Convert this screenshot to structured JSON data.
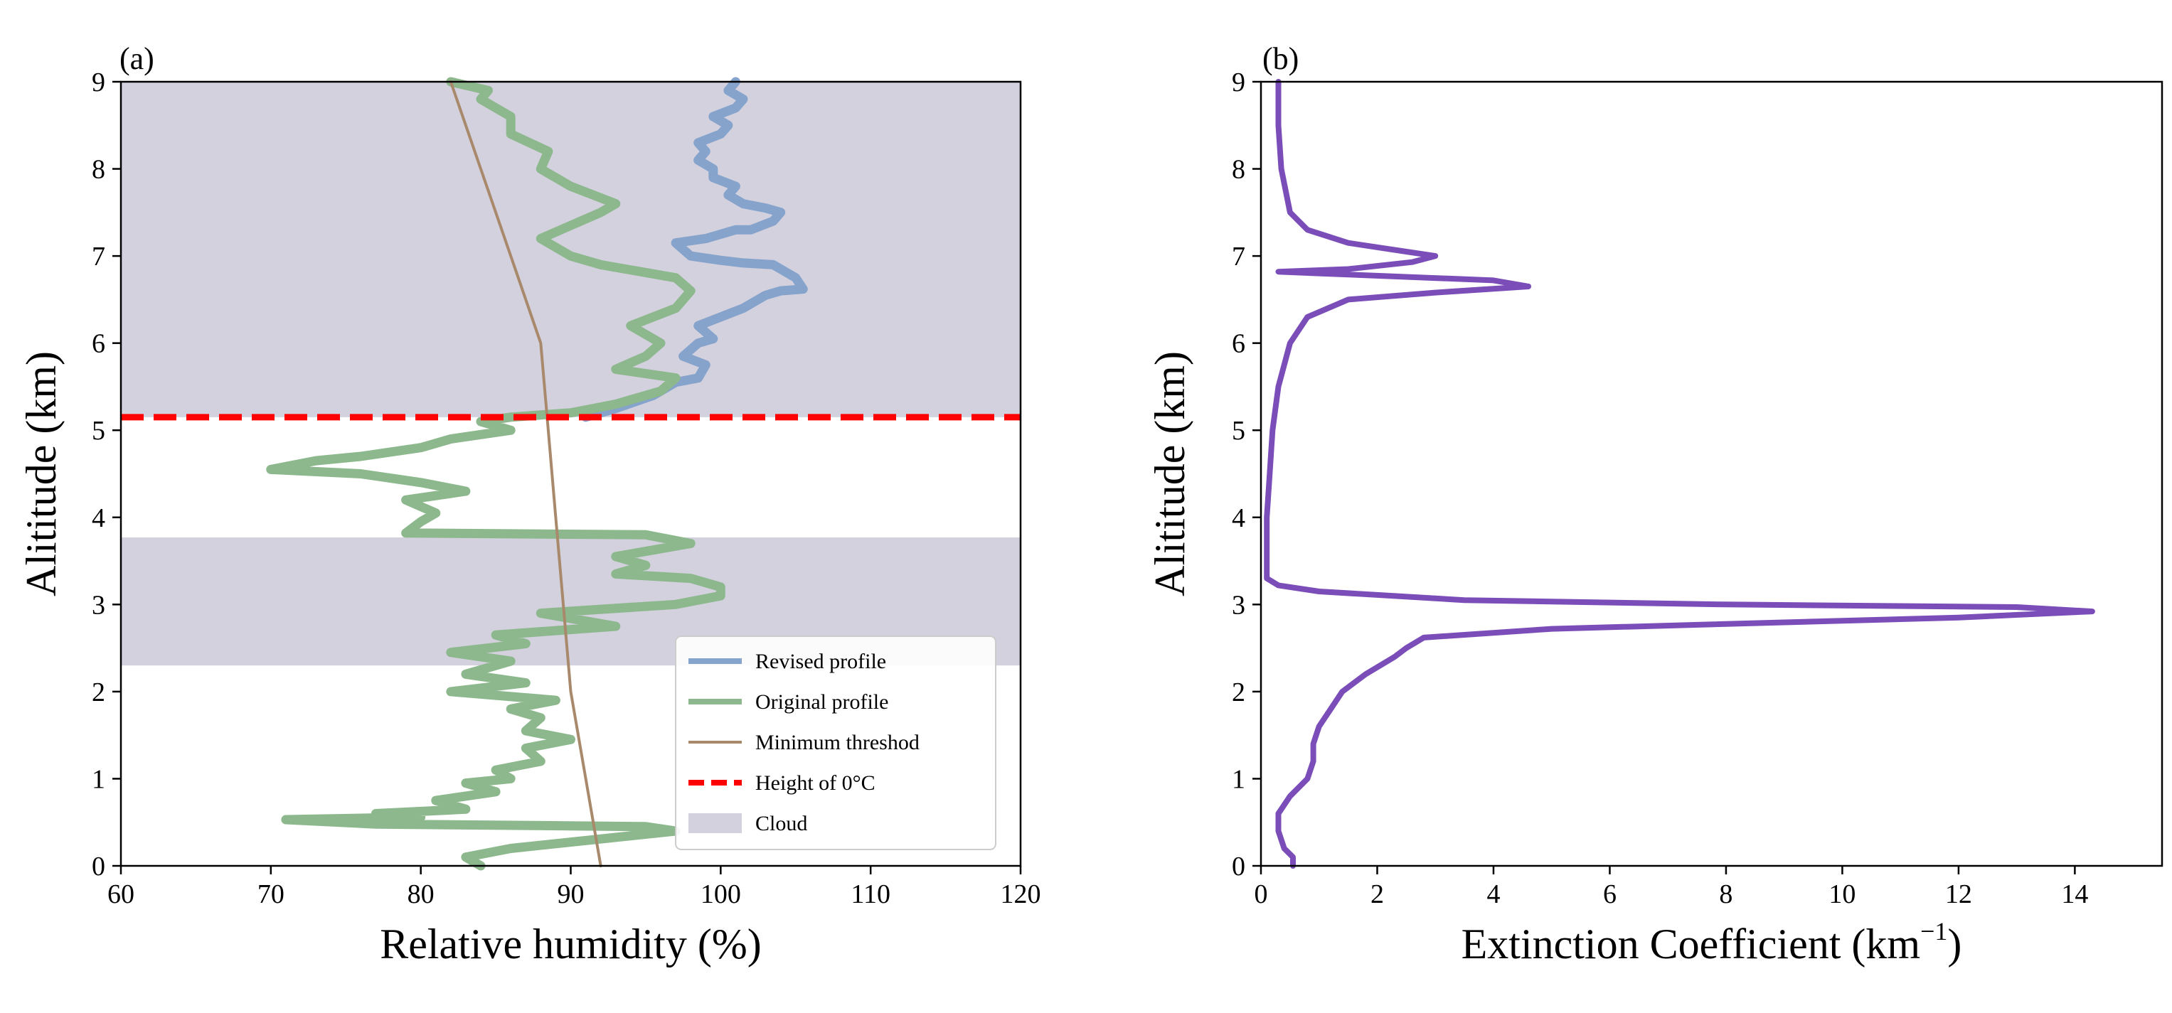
{
  "chart_data": [
    {
      "type": "line",
      "panel_label": "(a)",
      "xlabel": "Relative humidity (%)",
      "ylabel": "Alititude (km)",
      "xlim": [
        60,
        120
      ],
      "ylim": [
        0,
        9
      ],
      "xticks": [
        60,
        70,
        80,
        90,
        100,
        110,
        120
      ],
      "yticks": [
        0,
        1,
        2,
        3,
        4,
        5,
        6,
        7,
        8,
        9
      ],
      "cloud_bands": [
        [
          2.3,
          3.77
        ],
        [
          5.15,
          9.0
        ]
      ],
      "freezing_level": 5.15,
      "legend": {
        "position": "lower-right",
        "entries": [
          "Revised profile",
          "Original profile",
          "Minimum threshod",
          "Height of 0°C",
          "Cloud"
        ]
      },
      "colors": {
        "revised": "#86a3cc",
        "original": "#8db88d",
        "threshold": "#a9896b",
        "zero_deg": "#ff0000",
        "cloud": "#d3d1de"
      },
      "series": [
        {
          "name": "Revised profile",
          "points": [
            [
              91,
              5.15
            ],
            [
              93,
              5.25
            ],
            [
              95.5,
              5.4
            ],
            [
              97,
              5.55
            ],
            [
              98.5,
              5.6
            ],
            [
              99,
              5.75
            ],
            [
              97.5,
              5.85
            ],
            [
              98.5,
              6.0
            ],
            [
              99.5,
              6.05
            ],
            [
              98.5,
              6.2
            ],
            [
              100,
              6.3
            ],
            [
              101.5,
              6.4
            ],
            [
              102.5,
              6.5
            ],
            [
              103,
              6.55
            ],
            [
              104,
              6.6
            ],
            [
              105.5,
              6.62
            ],
            [
              105,
              6.75
            ],
            [
              103.5,
              6.9
            ],
            [
              101.5,
              6.92
            ],
            [
              100,
              6.95
            ],
            [
              98,
              7.0
            ],
            [
              97,
              7.15
            ],
            [
              99,
              7.2
            ],
            [
              101,
              7.3
            ],
            [
              102,
              7.3
            ],
            [
              103.5,
              7.4
            ],
            [
              104,
              7.5
            ],
            [
              103,
              7.55
            ],
            [
              101.5,
              7.6
            ],
            [
              100.5,
              7.7
            ],
            [
              101,
              7.8
            ],
            [
              99.5,
              7.9
            ],
            [
              99.5,
              8.0
            ],
            [
              98.5,
              8.1
            ],
            [
              99,
              8.2
            ],
            [
              98.5,
              8.3
            ],
            [
              100,
              8.4
            ],
            [
              100.5,
              8.5
            ],
            [
              99.5,
              8.6
            ],
            [
              101,
              8.7
            ],
            [
              101.5,
              8.8
            ],
            [
              100.5,
              8.9
            ],
            [
              101,
              9.0
            ]
          ]
        },
        {
          "name": "Original profile",
          "points": [
            [
              84,
              0.0
            ],
            [
              83,
              0.1
            ],
            [
              86,
              0.2
            ],
            [
              97,
              0.4
            ],
            [
              95,
              0.45
            ],
            [
              77,
              0.48
            ],
            [
              71,
              0.53
            ],
            [
              80,
              0.56
            ],
            [
              77,
              0.6
            ],
            [
              83,
              0.65
            ],
            [
              81,
              0.75
            ],
            [
              85,
              0.85
            ],
            [
              83,
              0.95
            ],
            [
              86,
              1.0
            ],
            [
              85,
              1.1
            ],
            [
              88,
              1.2
            ],
            [
              87,
              1.35
            ],
            [
              90,
              1.45
            ],
            [
              87,
              1.55
            ],
            [
              88,
              1.7
            ],
            [
              86,
              1.8
            ],
            [
              89,
              1.9
            ],
            [
              82,
              2.0
            ],
            [
              87,
              2.1
            ],
            [
              83,
              2.2
            ],
            [
              86,
              2.35
            ],
            [
              82,
              2.45
            ],
            [
              87,
              2.55
            ],
            [
              85,
              2.65
            ],
            [
              93,
              2.75
            ],
            [
              88,
              2.9
            ],
            [
              97,
              3.0
            ],
            [
              100,
              3.1
            ],
            [
              100,
              3.2
            ],
            [
              98,
              3.3
            ],
            [
              93,
              3.35
            ],
            [
              95,
              3.45
            ],
            [
              93,
              3.55
            ],
            [
              98,
              3.7
            ],
            [
              95,
              3.8
            ],
            [
              79,
              3.82
            ],
            [
              80,
              3.95
            ],
            [
              81,
              4.05
            ],
            [
              79,
              4.2
            ],
            [
              83,
              4.3
            ],
            [
              80,
              4.4
            ],
            [
              76,
              4.5
            ],
            [
              70,
              4.55
            ],
            [
              73,
              4.65
            ],
            [
              76,
              4.7
            ],
            [
              80,
              4.8
            ],
            [
              82,
              4.9
            ],
            [
              86,
              5.0
            ],
            [
              84,
              5.1
            ],
            [
              86,
              5.15
            ],
            [
              90,
              5.2
            ],
            [
              93,
              5.3
            ],
            [
              96,
              5.45
            ],
            [
              97,
              5.6
            ],
            [
              93,
              5.7
            ],
            [
              95,
              5.85
            ],
            [
              96,
              6.0
            ],
            [
              94,
              6.2
            ],
            [
              97,
              6.4
            ],
            [
              98,
              6.6
            ],
            [
              97,
              6.75
            ],
            [
              92,
              6.9
            ],
            [
              90,
              7.0
            ],
            [
              88,
              7.2
            ],
            [
              90,
              7.35
            ],
            [
              92,
              7.5
            ],
            [
              93,
              7.6
            ],
            [
              90,
              7.8
            ],
            [
              88,
              8.0
            ],
            [
              88.5,
              8.2
            ],
            [
              86,
              8.4
            ],
            [
              86,
              8.6
            ],
            [
              84,
              8.8
            ],
            [
              84.5,
              8.9
            ],
            [
              82,
              9.0
            ]
          ]
        },
        {
          "name": "Minimum threshod",
          "points": [
            [
              92,
              0
            ],
            [
              91,
              1
            ],
            [
              90,
              2
            ],
            [
              89.5,
              3
            ],
            [
              89,
              4
            ],
            [
              88.5,
              5
            ],
            [
              88,
              6
            ],
            [
              86,
              7
            ],
            [
              84,
              8
            ],
            [
              82,
              9
            ]
          ]
        }
      ]
    },
    {
      "type": "line",
      "panel_label": "(b)",
      "xlabel": "Extinction Coefficient  (km",
      "xlabel_sup": "−1",
      "xlabel_close": ")",
      "ylabel": "Alititude (km)",
      "xlim": [
        0,
        15.5
      ],
      "ylim": [
        0,
        9
      ],
      "xticks": [
        0,
        2,
        4,
        6,
        8,
        10,
        12,
        14
      ],
      "yticks": [
        0,
        1,
        2,
        3,
        4,
        5,
        6,
        7,
        8,
        9
      ],
      "colors": {
        "line": "#7a4db8"
      },
      "series": [
        {
          "name": "Extinction coefficient",
          "points": [
            [
              0.55,
              0.0
            ],
            [
              0.55,
              0.1
            ],
            [
              0.4,
              0.2
            ],
            [
              0.3,
              0.4
            ],
            [
              0.3,
              0.6
            ],
            [
              0.5,
              0.8
            ],
            [
              0.8,
              1.0
            ],
            [
              0.9,
              1.2
            ],
            [
              0.9,
              1.4
            ],
            [
              1.0,
              1.6
            ],
            [
              1.2,
              1.8
            ],
            [
              1.4,
              2.0
            ],
            [
              1.8,
              2.2
            ],
            [
              2.3,
              2.4
            ],
            [
              2.5,
              2.5
            ],
            [
              2.8,
              2.62
            ],
            [
              5.0,
              2.72
            ],
            [
              12.0,
              2.85
            ],
            [
              14.3,
              2.92
            ],
            [
              13.0,
              2.97
            ],
            [
              8.0,
              3.0
            ],
            [
              3.5,
              3.05
            ],
            [
              1.0,
              3.15
            ],
            [
              0.3,
              3.22
            ],
            [
              0.1,
              3.3
            ],
            [
              0.1,
              4.0
            ],
            [
              0.15,
              4.5
            ],
            [
              0.2,
              5.0
            ],
            [
              0.3,
              5.5
            ],
            [
              0.5,
              6.0
            ],
            [
              0.8,
              6.3
            ],
            [
              1.5,
              6.5
            ],
            [
              3.0,
              6.58
            ],
            [
              4.6,
              6.65
            ],
            [
              4.0,
              6.72
            ],
            [
              1.0,
              6.8
            ],
            [
              0.3,
              6.82
            ],
            [
              1.5,
              6.85
            ],
            [
              2.6,
              6.93
            ],
            [
              3.0,
              7.0
            ],
            [
              2.5,
              7.05
            ],
            [
              1.5,
              7.15
            ],
            [
              0.8,
              7.3
            ],
            [
              0.5,
              7.5
            ],
            [
              0.35,
              8.0
            ],
            [
              0.3,
              8.5
            ],
            [
              0.3,
              9.0
            ]
          ]
        }
      ]
    }
  ]
}
